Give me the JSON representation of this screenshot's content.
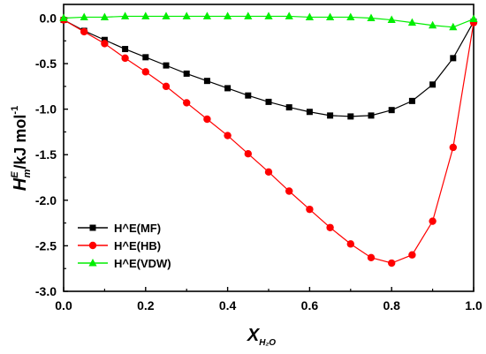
{
  "chart_data": {
    "type": "line",
    "xlabel": "X",
    "xlabel_sub": "H₂O",
    "ylabel_main": "H",
    "ylabel_sup": "E",
    "ylabel_sub": "m",
    "ylabel_unit": "/kJ mol",
    "ylabel_unit_sup": "-1",
    "xlim": [
      0.0,
      1.0
    ],
    "ylim": [
      -3.0,
      0.15
    ],
    "xticks": [
      "0.0",
      "0.2",
      "0.4",
      "0.6",
      "0.8",
      "1.0"
    ],
    "yticks": [
      "0.0",
      "-0.5",
      "-1.0",
      "-1.5",
      "-2.0",
      "-2.5",
      "-3.0"
    ],
    "legend_position": "bottom-left",
    "x": [
      0.0,
      0.05,
      0.1,
      0.15,
      0.2,
      0.25,
      0.3,
      0.35,
      0.4,
      0.45,
      0.5,
      0.55,
      0.6,
      0.65,
      0.7,
      0.75,
      0.8,
      0.85,
      0.9,
      0.95,
      1.0
    ],
    "series": [
      {
        "name": "H^E(MF)",
        "color": "#000000",
        "marker": "square",
        "values": [
          -0.02,
          -0.14,
          -0.24,
          -0.34,
          -0.43,
          -0.52,
          -0.61,
          -0.69,
          -0.77,
          -0.85,
          -0.92,
          -0.98,
          -1.03,
          -1.07,
          -1.08,
          -1.07,
          -1.01,
          -0.91,
          -0.73,
          -0.44,
          -0.04
        ]
      },
      {
        "name": "H^E(HB)",
        "color": "#ff0000",
        "marker": "circle",
        "values": [
          -0.02,
          -0.15,
          -0.28,
          -0.44,
          -0.59,
          -0.75,
          -0.93,
          -1.11,
          -1.29,
          -1.49,
          -1.69,
          -1.9,
          -2.1,
          -2.3,
          -2.48,
          -2.63,
          -2.69,
          -2.6,
          -2.23,
          -1.42,
          -0.05
        ]
      },
      {
        "name": "H^E(VDW)",
        "color": "#00ee00",
        "marker": "triangle",
        "values": [
          0.0,
          0.01,
          0.01,
          0.02,
          0.02,
          0.02,
          0.02,
          0.02,
          0.02,
          0.02,
          0.02,
          0.02,
          0.01,
          0.01,
          0.01,
          0.0,
          -0.02,
          -0.05,
          -0.08,
          -0.1,
          -0.01
        ]
      }
    ]
  }
}
